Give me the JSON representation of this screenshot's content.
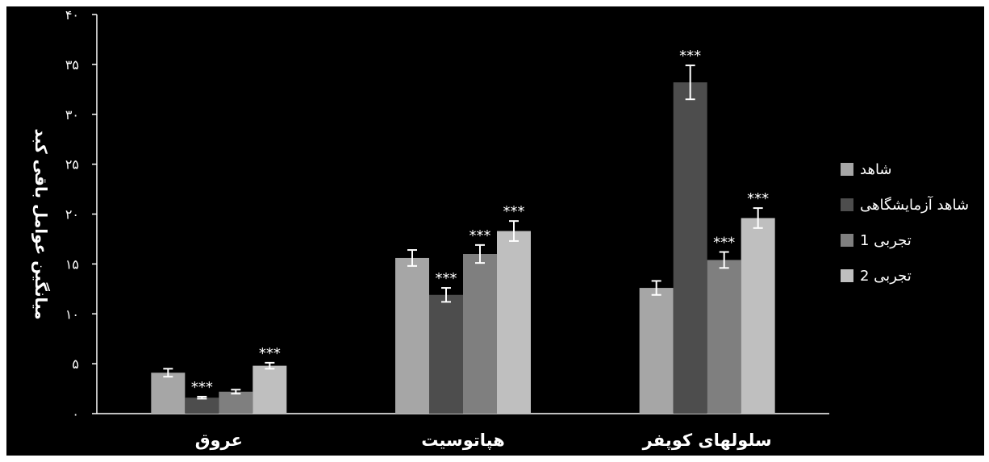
{
  "chart_data": {
    "type": "bar",
    "ylabel": "میانگین عوامل باقی کبد",
    "ylim": [
      0,
      40
    ],
    "yticks": [
      {
        "value": 0,
        "label": "۰"
      },
      {
        "value": 5,
        "label": "۵"
      },
      {
        "value": 10,
        "label": "۱۰"
      },
      {
        "value": 15,
        "label": "۱۵"
      },
      {
        "value": 20,
        "label": "۲۰"
      },
      {
        "value": 25,
        "label": "۲۵"
      },
      {
        "value": 30,
        "label": "۳۰"
      },
      {
        "value": 35,
        "label": "۳۵"
      },
      {
        "value": 40,
        "label": "۴۰"
      }
    ],
    "categories": [
      "عروق",
      "هپاتوسیت",
      "سلولهای کوپفر"
    ],
    "series": [
      {
        "name": "شاهد",
        "color": "#a6a6a6",
        "values": [
          4.1,
          15.6,
          12.6
        ],
        "errors": [
          0.4,
          0.8,
          0.7
        ],
        "sig": [
          "",
          "",
          ""
        ]
      },
      {
        "name": "شاهد آزمایشگاهی",
        "color": "#4d4d4d",
        "values": [
          1.6,
          11.9,
          33.2
        ],
        "errors": [
          0.1,
          0.7,
          1.7
        ],
        "sig": [
          "***",
          "***",
          "***"
        ]
      },
      {
        "name": "تجربی 1",
        "color": "#7f7f7f",
        "values": [
          2.2,
          16.0,
          15.4
        ],
        "errors": [
          0.2,
          0.9,
          0.8
        ],
        "sig": [
          "",
          "***",
          "***"
        ]
      },
      {
        "name": "تجربی 2",
        "color": "#bfbfbf",
        "values": [
          4.8,
          18.3,
          19.6
        ],
        "errors": [
          0.3,
          1.0,
          1.0
        ],
        "sig": [
          "***",
          "***",
          "***"
        ]
      }
    ],
    "legend_position": "right",
    "grid": false
  }
}
